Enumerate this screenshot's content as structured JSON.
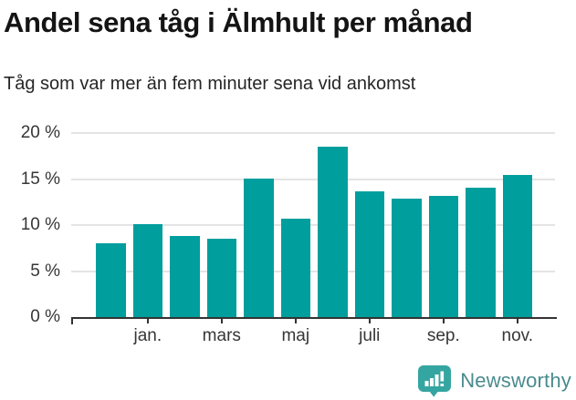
{
  "header": {
    "title": "Andel sena tåg i Älmhult per månad",
    "subtitle": "Tåg som var mer än fem minuter sena vid ankomst"
  },
  "chart_data": {
    "type": "bar",
    "categories": [
      "",
      "jan.",
      "",
      "mars",
      "",
      "maj",
      "",
      "juli",
      "",
      "sep.",
      "",
      "nov."
    ],
    "values": [
      8.0,
      10.1,
      8.8,
      8.5,
      15.1,
      10.7,
      18.5,
      13.7,
      12.9,
      13.2,
      14.1,
      15.5
    ],
    "title": "Andel sena tåg i Älmhult per månad",
    "subtitle": "Tåg som var mer än fem minuter sena vid ankomst",
    "xlabel": "",
    "ylabel": "",
    "ylim": [
      0,
      20
    ],
    "ytick_labels": [
      "0 %",
      "5 %",
      "10 %",
      "15 %",
      "20 %"
    ],
    "ytick_values": [
      0,
      5,
      10,
      15,
      20
    ],
    "grid": true,
    "legend": false,
    "bar_color": "#009e9d"
  },
  "footer": {
    "brand": "Newsworthy",
    "logo_icon": "newsworthy-chart-bubble",
    "brand_text_color": "#4a8b8e",
    "logo_color": "#35a5a1"
  },
  "colors": {
    "bar": "#009e9d",
    "gridline": "#e4e4e4",
    "axis": "#333333",
    "tick_label": "#363636",
    "title": "#141414",
    "subtitle": "#262626"
  }
}
